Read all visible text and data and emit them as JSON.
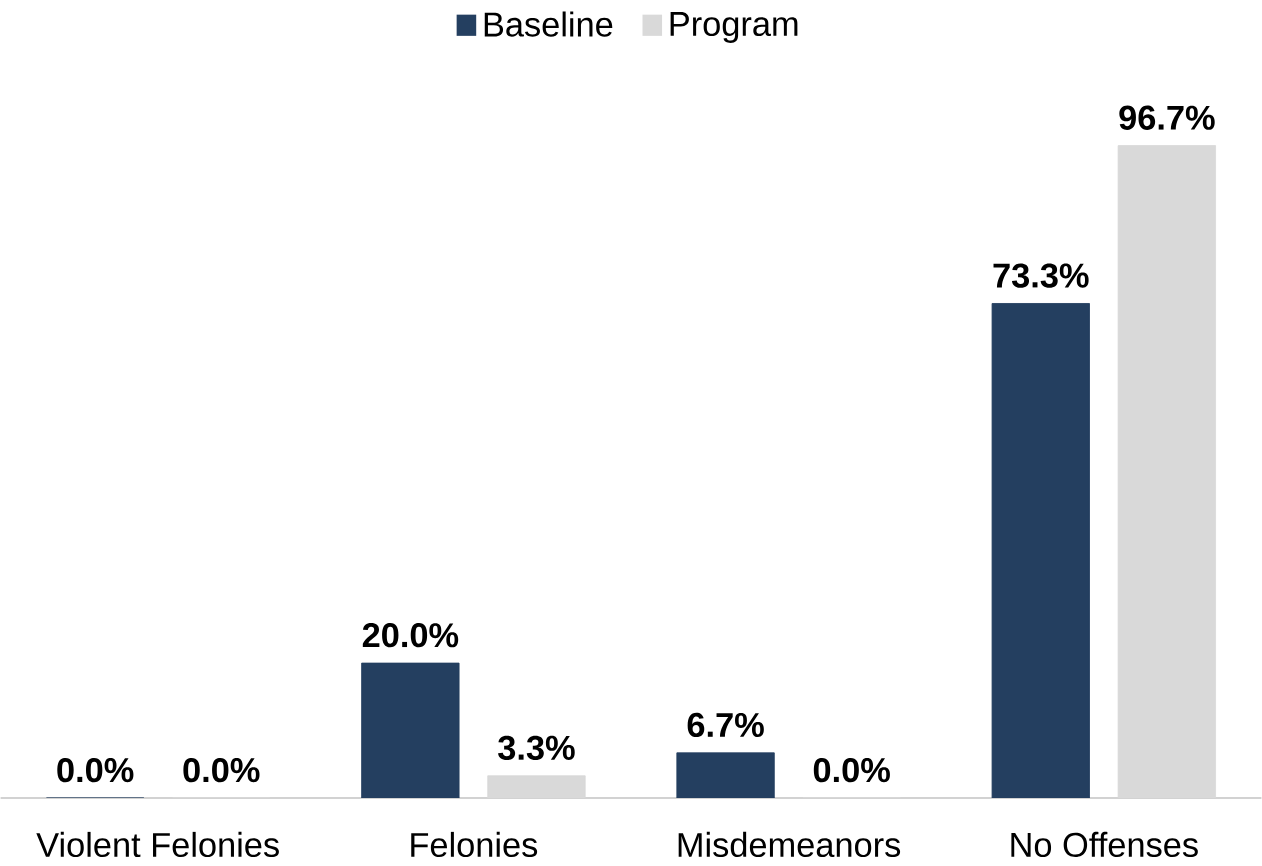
{
  "chart_data": {
    "type": "bar",
    "categories": [
      "Violent Felonies",
      "Felonies",
      "Misdemeanors",
      "No Offenses"
    ],
    "series": [
      {
        "name": "Baseline",
        "color": "#243f60",
        "values": [
          0.0,
          20.0,
          6.7,
          73.3
        ],
        "value_labels": [
          "0.0%",
          "20.0%",
          "6.7%",
          "73.3%"
        ]
      },
      {
        "name": "Program",
        "color": "#d9d9d9",
        "values": [
          0.0,
          3.3,
          0.0,
          96.7
        ],
        "value_labels": [
          "0.0%",
          "3.3%",
          "0.0%",
          "96.7%"
        ]
      }
    ],
    "legend": "top"
  }
}
